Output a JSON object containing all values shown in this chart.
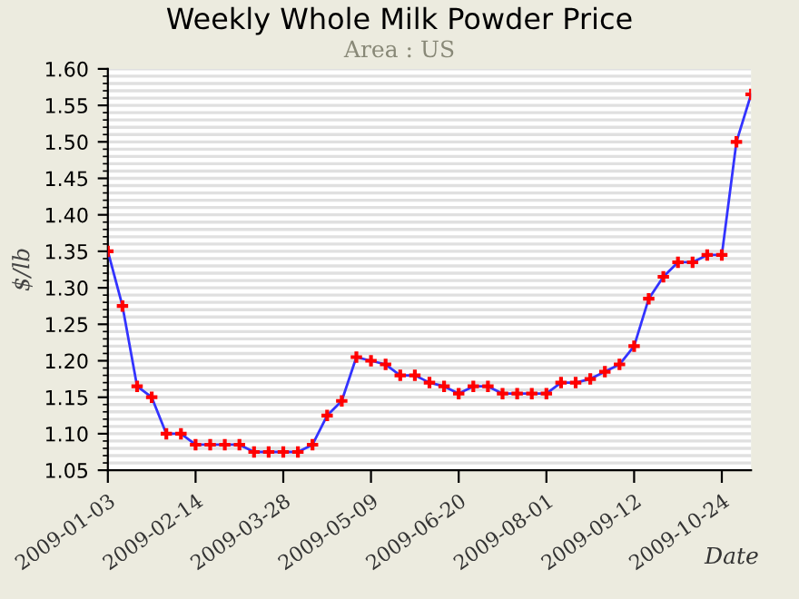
{
  "chart_data": {
    "type": "line",
    "title": "Weekly Whole Milk Powder Price",
    "subtitle": "Area : US",
    "xlabel": "Date",
    "ylabel": "$/lb",
    "x": [
      "2009-01-03",
      "2009-01-10",
      "2009-01-17",
      "2009-01-24",
      "2009-01-31",
      "2009-02-07",
      "2009-02-14",
      "2009-02-21",
      "2009-02-28",
      "2009-03-07",
      "2009-03-14",
      "2009-03-21",
      "2009-03-28",
      "2009-04-04",
      "2009-04-11",
      "2009-04-18",
      "2009-04-25",
      "2009-05-02",
      "2009-05-09",
      "2009-05-16",
      "2009-05-23",
      "2009-05-30",
      "2009-06-06",
      "2009-06-13",
      "2009-06-20",
      "2009-06-27",
      "2009-07-04",
      "2009-07-11",
      "2009-07-18",
      "2009-07-25",
      "2009-08-01",
      "2009-08-08",
      "2009-08-15",
      "2009-08-22",
      "2009-08-29",
      "2009-09-05",
      "2009-09-12",
      "2009-09-19",
      "2009-09-26",
      "2009-10-03",
      "2009-10-10",
      "2009-10-17",
      "2009-10-24",
      "2009-10-31",
      "2009-11-07"
    ],
    "series": [
      {
        "color": "#3333ff",
        "values": [
          1.35,
          1.275,
          1.165,
          1.15,
          1.1,
          1.1,
          1.085,
          1.085,
          1.085,
          1.085,
          1.075,
          1.075,
          1.075,
          1.075,
          1.085,
          1.125,
          1.145,
          1.205,
          1.2,
          1.195,
          1.18,
          1.18,
          1.17,
          1.165,
          1.155,
          1.165,
          1.165,
          1.155,
          1.155,
          1.155,
          1.155,
          1.17,
          1.17,
          1.175,
          1.185,
          1.195,
          1.22,
          1.285,
          1.315,
          1.335,
          1.335,
          1.345,
          1.345,
          1.5,
          1.565
        ]
      }
    ],
    "xlim": [
      "2009-01-03",
      "2009-11-07"
    ],
    "xticks": [
      "2009-01-03",
      "2009-02-14",
      "2009-03-28",
      "2009-05-09",
      "2009-06-20",
      "2009-08-01",
      "2009-09-12",
      "2009-10-24"
    ],
    "ylim": [
      1.05,
      1.6
    ],
    "yticks": [
      1.05,
      {
        "value": 1.1,
        "label": "1.10"
      },
      1.15,
      {
        "value": 1.2,
        "label": "1.20"
      },
      1.25,
      {
        "value": 1.3,
        "label": "1.30"
      },
      1.35,
      {
        "value": 1.4,
        "label": "1.40"
      },
      1.45,
      {
        "value": 1.5,
        "label": "1.50"
      },
      1.55,
      {
        "value": 1.6,
        "label": "1.60"
      }
    ],
    "grid": "y",
    "marker": "cross",
    "line_style": "solid",
    "legend": false
  }
}
